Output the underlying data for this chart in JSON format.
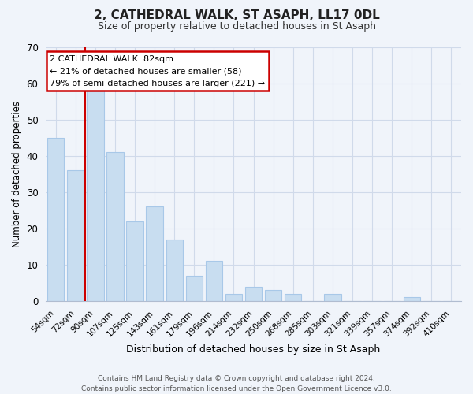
{
  "title": "2, CATHEDRAL WALK, ST ASAPH, LL17 0DL",
  "subtitle": "Size of property relative to detached houses in St Asaph",
  "xlabel": "Distribution of detached houses by size in St Asaph",
  "ylabel": "Number of detached properties",
  "bar_labels": [
    "54sqm",
    "72sqm",
    "90sqm",
    "107sqm",
    "125sqm",
    "143sqm",
    "161sqm",
    "179sqm",
    "196sqm",
    "214sqm",
    "232sqm",
    "250sqm",
    "268sqm",
    "285sqm",
    "303sqm",
    "321sqm",
    "339sqm",
    "357sqm",
    "374sqm",
    "392sqm",
    "410sqm"
  ],
  "bar_values": [
    45,
    36,
    58,
    41,
    22,
    26,
    17,
    7,
    11,
    2,
    4,
    3,
    2,
    0,
    2,
    0,
    0,
    0,
    1,
    0,
    0
  ],
  "bar_color": "#c8ddf0",
  "bar_edge_color": "#a8c8e8",
  "ylim": [
    0,
    70
  ],
  "yticks": [
    0,
    10,
    20,
    30,
    40,
    50,
    60,
    70
  ],
  "annotation_title": "2 CATHEDRAL WALK: 82sqm",
  "annotation_line1": "← 21% of detached houses are smaller (58)",
  "annotation_line2": "79% of semi-detached houses are larger (221) →",
  "annotation_box_color": "#ffffff",
  "annotation_box_edge": "#cc0000",
  "vertical_line_color": "#cc0000",
  "footer_line1": "Contains HM Land Registry data © Crown copyright and database right 2024.",
  "footer_line2": "Contains public sector information licensed under the Open Government Licence v3.0.",
  "background_color": "#f0f4fa",
  "plot_bg_color": "#f0f4fa",
  "grid_color": "#d0daea"
}
